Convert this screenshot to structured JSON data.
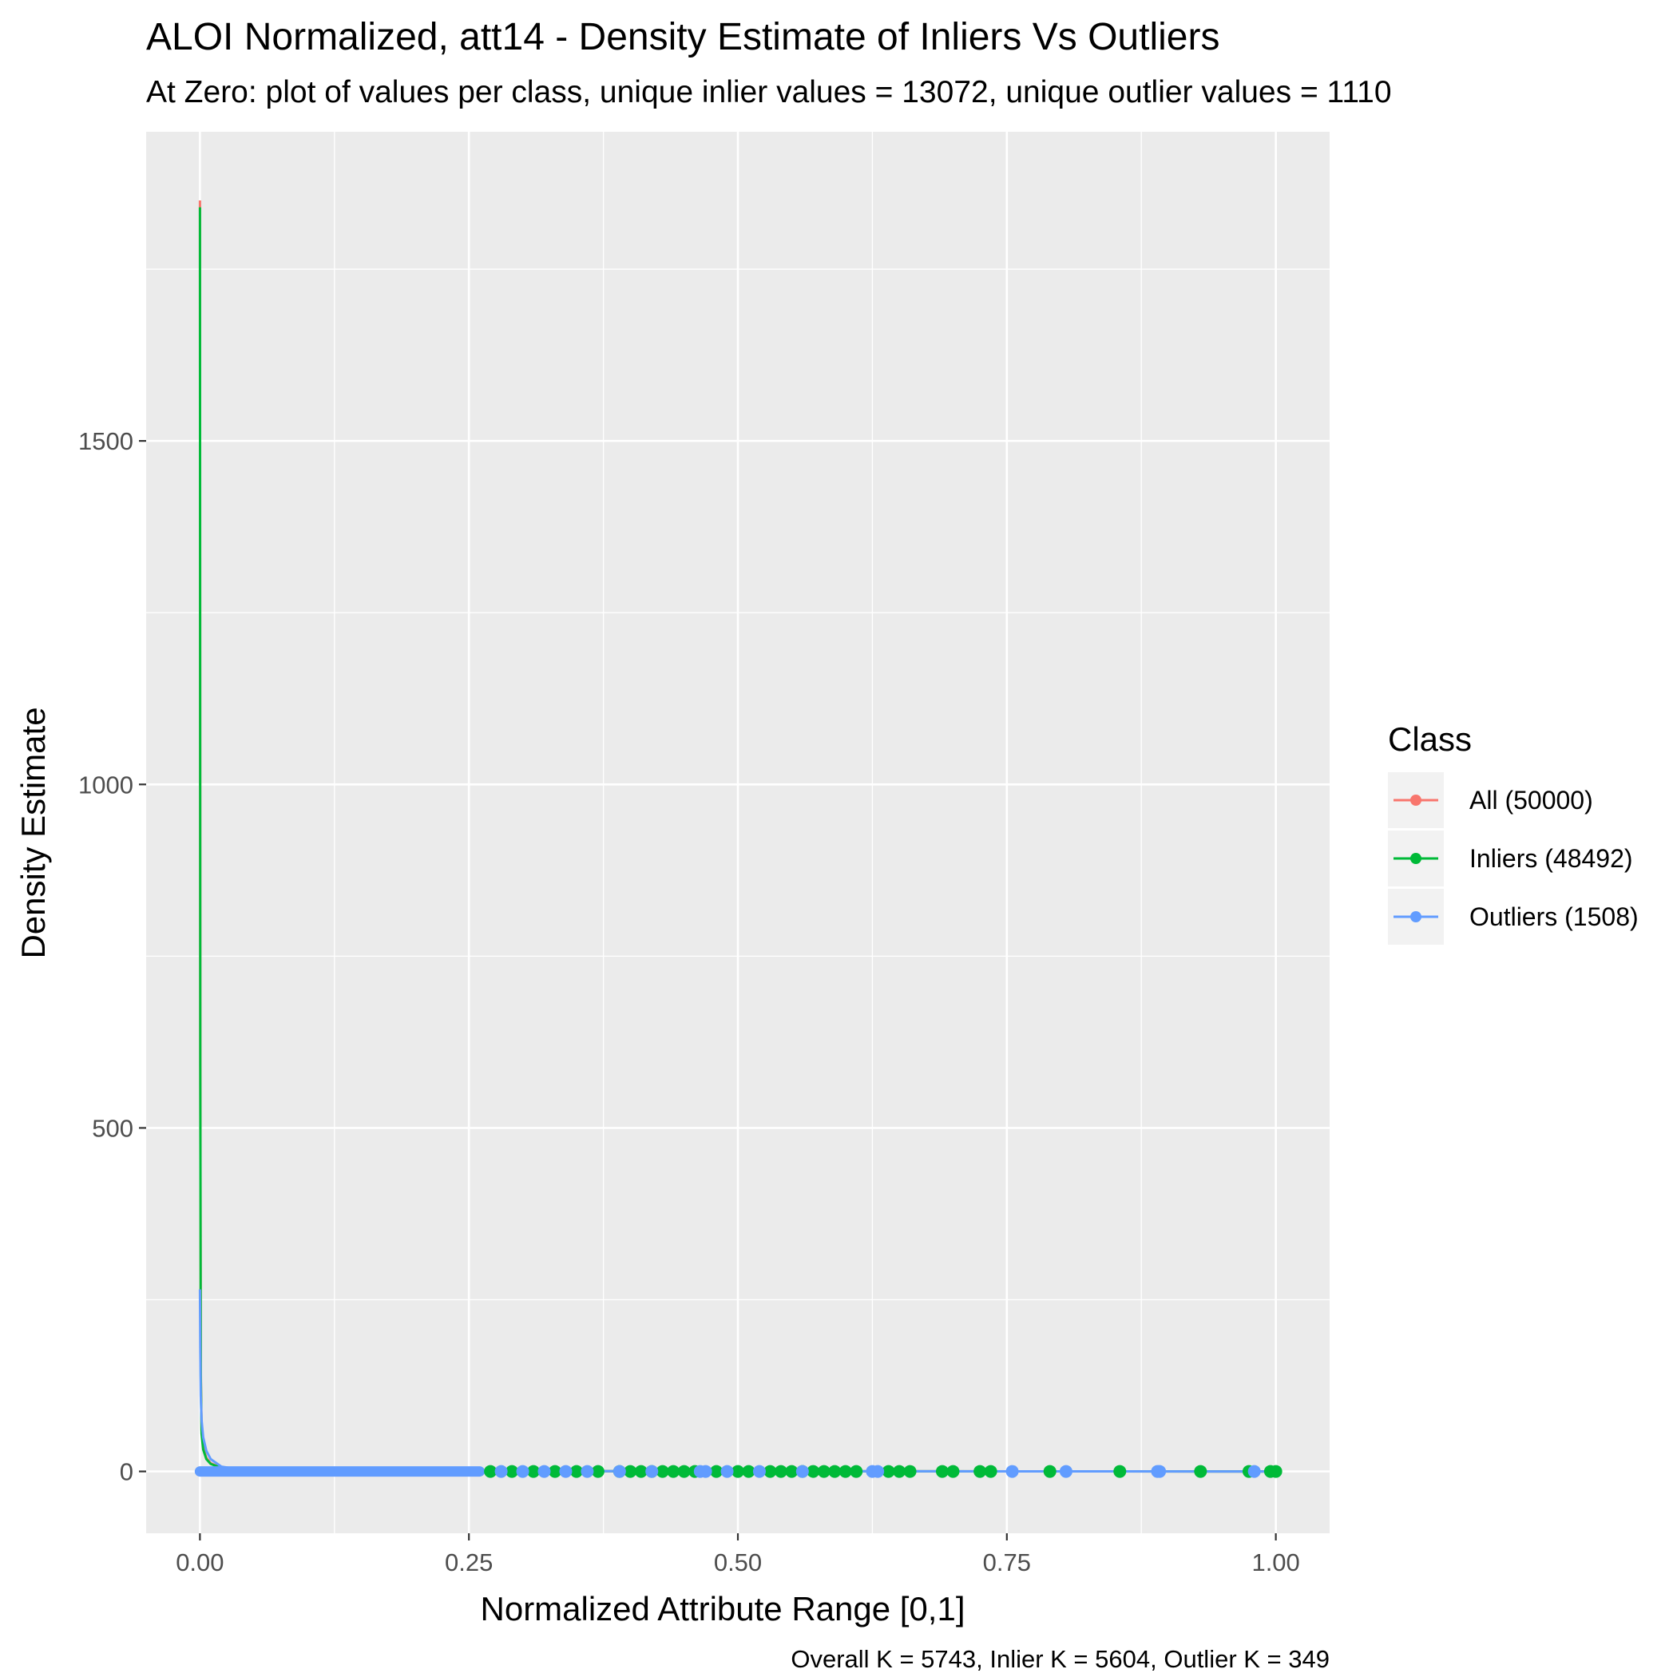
{
  "chart_data": {
    "type": "line",
    "title": "ALOI Normalized, att14 - Density Estimate of Inliers Vs Outliers",
    "subtitle": "At Zero: plot of values per class, unique inlier values = 13072, unique outlier values = 1110",
    "xlabel": "Normalized Attribute Range [0,1]",
    "ylabel": "Density Estimate",
    "caption": "Overall K = 5743, Inlier K = 5604, Outlier K = 349",
    "xlim": [
      -0.05,
      1.05
    ],
    "ylim": [
      -90,
      1950
    ],
    "x_ticks": [
      0.0,
      0.25,
      0.5,
      0.75,
      1.0
    ],
    "x_tick_labels": [
      "0.00",
      "0.25",
      "0.50",
      "0.75",
      "1.00"
    ],
    "y_ticks": [
      0,
      500,
      1000,
      1500
    ],
    "y_tick_labels": [
      "0",
      "500",
      "1000",
      "1500"
    ],
    "grid": true,
    "background": "#ebebeb",
    "legend": {
      "title": "Class",
      "placement": "right",
      "entries": [
        "All (50000)",
        "Inliers (48492)",
        "Outliers (1508)"
      ]
    },
    "series": [
      {
        "name": "All (50000)",
        "color": "#F8766D",
        "x": [
          0,
          0.0003,
          0.0008,
          0.0015,
          0.003,
          0.006,
          0.01,
          0.02,
          0.04,
          0.1,
          1.0
        ],
        "y": [
          1850,
          600,
          150,
          60,
          35,
          20,
          12,
          5,
          2,
          0.5,
          0
        ]
      },
      {
        "name": "Inliers (48492)",
        "color": "#00BA38",
        "x": [
          0,
          0.0003,
          0.0008,
          0.0015,
          0.003,
          0.006,
          0.01,
          0.02,
          0.04,
          0.1,
          1.0
        ],
        "y": [
          1840,
          590,
          140,
          55,
          32,
          18,
          11,
          5,
          2,
          0.5,
          0
        ]
      },
      {
        "name": "Outliers (1508)",
        "color": "#619CFF",
        "x": [
          0,
          0.0003,
          0.0008,
          0.0015,
          0.003,
          0.006,
          0.01,
          0.02,
          0.04,
          0.1,
          1.0
        ],
        "y": [
          265,
          180,
          110,
          75,
          50,
          30,
          18,
          7,
          2,
          0.5,
          0
        ]
      }
    ],
    "rug_points": {
      "Inliers (48492)": [
        0.27,
        0.29,
        0.31,
        0.33,
        0.35,
        0.37,
        0.39,
        0.4,
        0.41,
        0.42,
        0.43,
        0.44,
        0.45,
        0.46,
        0.48,
        0.5,
        0.51,
        0.53,
        0.54,
        0.55,
        0.56,
        0.57,
        0.58,
        0.59,
        0.6,
        0.61,
        0.64,
        0.65,
        0.66,
        0.69,
        0.7,
        0.725,
        0.735,
        0.79,
        0.855,
        0.93,
        0.975,
        0.995,
        1.0
      ],
      "Outliers (1508)": [
        0.28,
        0.3,
        0.32,
        0.34,
        0.36,
        0.39,
        0.42,
        0.465,
        0.47,
        0.49,
        0.52,
        0.56,
        0.625,
        0.63,
        0.755,
        0.805,
        0.89,
        0.892,
        0.98
      ]
    }
  }
}
